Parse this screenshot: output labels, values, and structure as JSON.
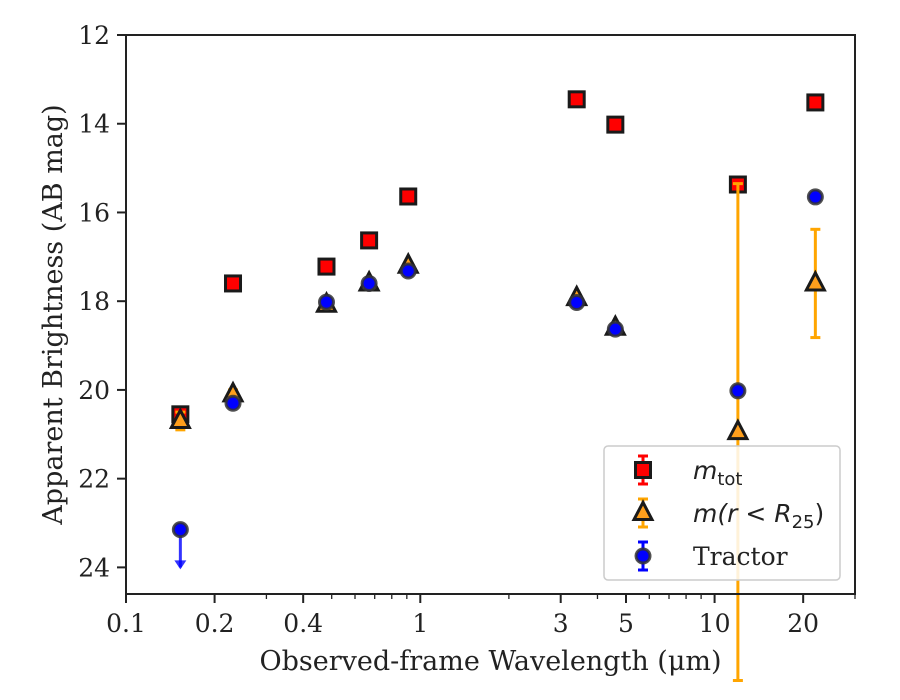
{
  "chart_data": {
    "type": "scatter",
    "xlabel": "Observed-frame Wavelength (μm)",
    "ylabel": "Apparent Brightness (AB mag)",
    "x_scale": "log",
    "xlim": [
      0.1,
      30
    ],
    "ylim": [
      24.6,
      12
    ],
    "y_inverted": true,
    "grid": false,
    "legend_position": "bottom-right",
    "x_ticks": [
      {
        "value": 0.1,
        "label": "0.1"
      },
      {
        "value": 0.2,
        "label": "0.2"
      },
      {
        "value": 0.4,
        "label": "0.4"
      },
      {
        "value": 1,
        "label": "1"
      },
      {
        "value": 3,
        "label": "3"
      },
      {
        "value": 5,
        "label": "5"
      },
      {
        "value": 10,
        "label": "10"
      },
      {
        "value": 20,
        "label": "20"
      }
    ],
    "y_ticks": [
      {
        "value": 12,
        "label": "12"
      },
      {
        "value": 14,
        "label": "14"
      },
      {
        "value": 16,
        "label": "16"
      },
      {
        "value": 18,
        "label": "18"
      },
      {
        "value": 20,
        "label": "20"
      },
      {
        "value": 22,
        "label": "22"
      },
      {
        "value": 24,
        "label": "24"
      }
    ],
    "series": [
      {
        "name": "m_tot",
        "legend_main": "m",
        "legend_sub": "tot",
        "marker": "square",
        "color": "#ff0000",
        "edge_color": "#1a1a1a",
        "err_color": "#ff0000",
        "points": [
          {
            "x": 0.153,
            "y": 20.55,
            "yerr": 0.1
          },
          {
            "x": 0.231,
            "y": 17.6,
            "yerr": 0.05
          },
          {
            "x": 0.48,
            "y": 17.22,
            "yerr": 0.05
          },
          {
            "x": 0.67,
            "y": 16.63,
            "yerr": 0.05
          },
          {
            "x": 0.91,
            "y": 15.64,
            "yerr": 0.05
          },
          {
            "x": 3.4,
            "y": 13.45,
            "yerr": 0.05
          },
          {
            "x": 4.6,
            "y": 14.02,
            "yerr": 0.05
          },
          {
            "x": 12.0,
            "y": 15.37,
            "yerr": 0.05
          },
          {
            "x": 22.0,
            "y": 13.52,
            "yerr": 0.05
          }
        ]
      },
      {
        "name": "m(r < R25)",
        "legend_text": "m(r < R",
        "legend_sub": "25",
        "legend_tail": ")",
        "marker": "triangle",
        "color": "#ff9f1c",
        "edge_color": "#1a1a1a",
        "err_color": "#ffa500",
        "points": [
          {
            "x": 0.153,
            "y": 20.7,
            "yerr": 0.2
          },
          {
            "x": 0.231,
            "y": 20.1,
            "yerr": 0.1
          },
          {
            "x": 0.48,
            "y": 18.08,
            "yerr": 0.05
          },
          {
            "x": 0.67,
            "y": 17.6,
            "yerr": 0.05
          },
          {
            "x": 0.91,
            "y": 17.2,
            "yerr": 0.05
          },
          {
            "x": 3.4,
            "y": 17.93,
            "yerr": 0.05
          },
          {
            "x": 4.6,
            "y": 18.6,
            "yerr": 0.05
          },
          {
            "x": 12.0,
            "y": 20.95,
            "yerr": 5.6
          },
          {
            "x": 22.0,
            "y": 17.6,
            "yerr": 1.22
          }
        ]
      },
      {
        "name": "Tractor",
        "legend_text": "Tractor",
        "marker": "circle",
        "color": "#0000ff",
        "edge_color": "#333333",
        "err_color": "#0000ff",
        "points": [
          {
            "x": 0.153,
            "y": 23.15,
            "upper_limit": true
          },
          {
            "x": 0.231,
            "y": 20.3,
            "yerr": 0.05
          },
          {
            "x": 0.48,
            "y": 18.02,
            "yerr": 0.05
          },
          {
            "x": 0.67,
            "y": 17.6,
            "yerr": 0.05
          },
          {
            "x": 0.91,
            "y": 17.32,
            "yerr": 0.05
          },
          {
            "x": 3.4,
            "y": 18.03,
            "yerr": 0.05
          },
          {
            "x": 4.6,
            "y": 18.63,
            "yerr": 0.05
          },
          {
            "x": 12.0,
            "y": 20.02,
            "yerr": 0.05
          },
          {
            "x": 22.0,
            "y": 15.65,
            "yerr": 0.05
          }
        ]
      }
    ]
  }
}
